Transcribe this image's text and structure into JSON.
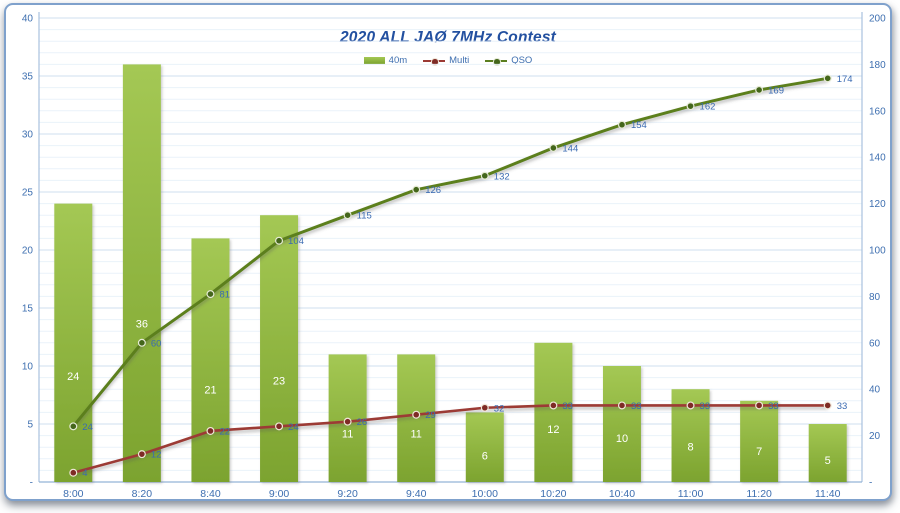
{
  "title": "2020 ALL JAØ 7MHz Contest",
  "legend": {
    "items": [
      {
        "label": "40m",
        "swatch": "bar"
      },
      {
        "label": "Multi",
        "swatch": "line-dot"
      },
      {
        "label": "QSO",
        "swatch": "line-dot"
      }
    ]
  },
  "chart_data": {
    "type": "combo-bar-line",
    "title": "2020 ALL JAØ 7MHz Contest",
    "categories": [
      "8:00",
      "8:20",
      "8:40",
      "9:00",
      "9:20",
      "9:40",
      "10:00",
      "10:20",
      "10:40",
      "11:00",
      "11:20",
      "11:40"
    ],
    "series": [
      {
        "name": "40m",
        "type": "bar",
        "axis": "left",
        "values": [
          24,
          36,
          21,
          23,
          11,
          11,
          6,
          12,
          10,
          8,
          7,
          5
        ]
      },
      {
        "name": "Multi",
        "type": "line",
        "axis": "right",
        "values": [
          4,
          12,
          22,
          24,
          26,
          29,
          32,
          33,
          33,
          33,
          33,
          33
        ]
      },
      {
        "name": "QSO",
        "type": "line",
        "axis": "right",
        "values": [
          24,
          60,
          81,
          104,
          115,
          126,
          132,
          144,
          154,
          162,
          169,
          174
        ]
      }
    ],
    "left_axis": {
      "min": 0,
      "max": 40,
      "major_step": 5,
      "minor_step": 1,
      "zero_label": "-",
      "ticks": [
        "40",
        "35",
        "30",
        "25",
        "20",
        "15",
        "10",
        "5",
        "-"
      ]
    },
    "right_axis": {
      "min": 0,
      "max": 200,
      "major_step": 20,
      "zero_label": "-",
      "ticks": [
        "200",
        "180",
        "160",
        "140",
        "120",
        "100",
        "80",
        "60",
        "40",
        "20",
        "-"
      ]
    },
    "grid": "major+minor horizontal",
    "legend_position": "top",
    "data_labels": "all points labeled"
  },
  "colors": {
    "bar_top": "#a4c854",
    "bar_bottom": "#7ca32f",
    "bar_label": "#ffffff",
    "multi_line": "#9c3a34",
    "multi_marker": "#7e2b25",
    "multi_marker_ring": "#f0e7d9",
    "qso_line": "#5b7f1f",
    "qso_marker": "#44661b",
    "qso_marker_ring": "#e6ead6",
    "title_text": "#2350a0",
    "axis_text": "#3e6fb0",
    "data_label_text": "#3a6ab2",
    "grid_major": "#cfdfef",
    "grid_minor": "#eaf2fa",
    "axis_line": "#a9c2de",
    "baseline": "#95b3d7"
  }
}
